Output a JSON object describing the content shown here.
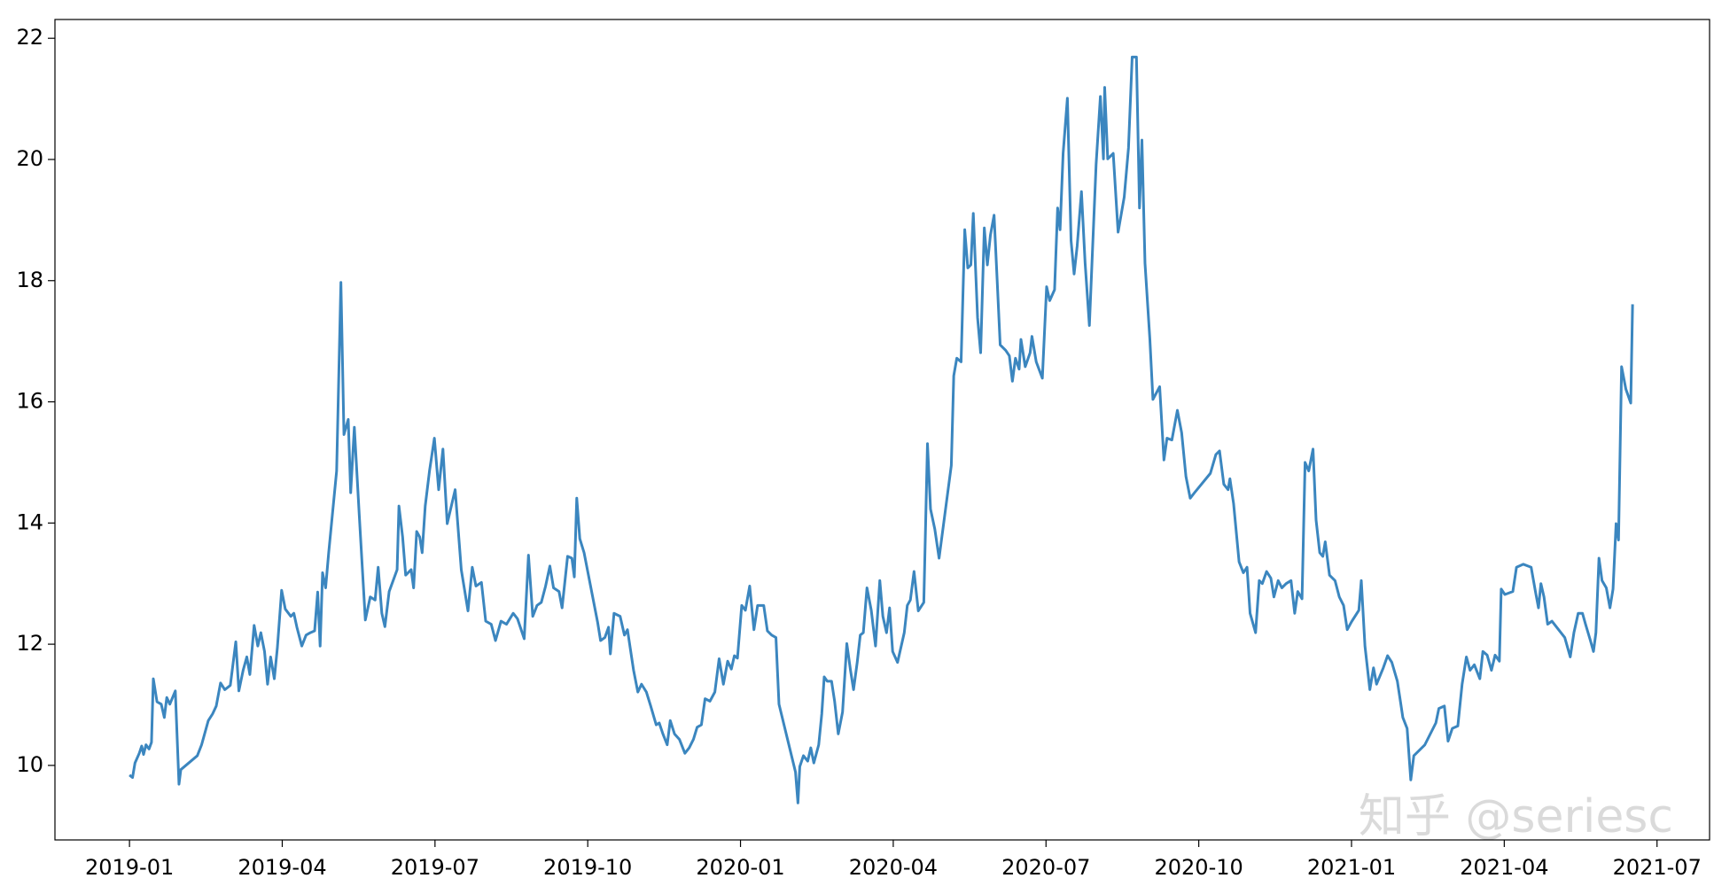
{
  "chart_data": {
    "type": "line",
    "watermark": "知乎 @seriesc",
    "color": "#3b86bf",
    "xlim": [
      2018.878,
      2021.586
    ],
    "xticks": [
      {
        "value": 2019,
        "label": "2019-01"
      },
      {
        "value": 2019.25,
        "label": "2019-04"
      },
      {
        "value": 2019.5,
        "label": "2019-07"
      },
      {
        "value": 2019.75,
        "label": "2019-10"
      },
      {
        "value": 2020,
        "label": "2020-01"
      },
      {
        "value": 2020.25,
        "label": "2020-04"
      },
      {
        "value": 2020.5,
        "label": "2020-07"
      },
      {
        "value": 2020.75,
        "label": "2020-10"
      },
      {
        "value": 2021,
        "label": "2021-01"
      },
      {
        "value": 2021.25,
        "label": "2021-04"
      },
      {
        "value": 2021.5,
        "label": "2021-07"
      }
    ],
    "ylim": [
      8.77,
      22.31
    ],
    "yticks": [
      10,
      12,
      14,
      16,
      18,
      20,
      22
    ],
    "x": [
      2019.0,
      2019.005,
      2019.009,
      2019.016,
      2019.02,
      2019.023,
      2019.027,
      2019.032,
      2019.036,
      2019.039,
      2019.045,
      2019.052,
      2019.057,
      2019.061,
      2019.066,
      2019.075,
      2019.081,
      2019.084,
      2019.111,
      2019.118,
      2019.129,
      2019.136,
      2019.142,
      2019.149,
      2019.156,
      2019.165,
      2019.174,
      2019.179,
      2019.186,
      2019.192,
      2019.197,
      2019.204,
      2019.21,
      2019.215,
      2019.221,
      2019.226,
      2019.231,
      2019.237,
      2019.242,
      2019.249,
      2019.255,
      2019.264,
      2019.269,
      2019.274,
      2019.282,
      2019.289,
      2019.296,
      2019.303,
      2019.308,
      2019.312,
      2019.316,
      2019.321,
      2019.326,
      2019.339,
      2019.346,
      2019.351,
      2019.358,
      2019.362,
      2019.368,
      2019.376,
      2019.386,
      2019.394,
      2019.402,
      2019.407,
      2019.413,
      2019.418,
      2019.425,
      2019.438,
      2019.441,
      2019.447,
      2019.452,
      2019.461,
      2019.465,
      2019.47,
      2019.475,
      2019.479,
      2019.484,
      2019.491,
      2019.499,
      2019.506,
      2019.513,
      2019.52,
      2019.533,
      2019.543,
      2019.554,
      2019.561,
      2019.567,
      2019.576,
      2019.583,
      2019.592,
      2019.599,
      2019.608,
      2019.617,
      2019.628,
      2019.635,
      2019.646,
      2019.653,
      2019.66,
      2019.667,
      2019.674,
      2019.681,
      2019.688,
      2019.694,
      2019.703,
      2019.708,
      2019.717,
      2019.724,
      2019.728,
      2019.732,
      2019.737,
      2019.744,
      2019.766,
      2019.771,
      2019.778,
      2019.784,
      2019.787,
      2019.793,
      2019.803,
      2019.81,
      2019.815,
      2019.825,
      2019.832,
      2019.838,
      2019.846,
      2019.853,
      2019.862,
      2019.867,
      2019.873,
      2019.88,
      2019.885,
      2019.892,
      2019.9,
      2019.909,
      2019.916,
      2019.923,
      2019.929,
      2019.936,
      2019.942,
      2019.95,
      2019.958,
      2019.965,
      2019.972,
      2019.979,
      2019.985,
      2019.99,
      2019.995,
      2020.002,
      2020.008,
      2020.015,
      2020.022,
      2020.028,
      2020.038,
      2020.044,
      2020.051,
      2020.058,
      2020.063,
      2020.09,
      2020.094,
      2020.097,
      2020.103,
      2020.11,
      2020.115,
      2020.12,
      2020.128,
      2020.133,
      2020.137,
      2020.142,
      2020.149,
      2020.154,
      2020.16,
      2020.167,
      2020.174,
      2020.18,
      2020.185,
      2020.191,
      2020.196,
      2020.201,
      2020.207,
      2020.214,
      2020.221,
      2020.228,
      2020.233,
      2020.239,
      2020.244,
      2020.249,
      2020.257,
      2020.268,
      2020.273,
      2020.278,
      2020.284,
      2020.291,
      2020.3,
      2020.306,
      2020.311,
      2020.318,
      2020.325,
      2020.345,
      2020.349,
      2020.354,
      2020.361,
      2020.367,
      2020.372,
      2020.377,
      2020.381,
      2020.388,
      2020.393,
      2020.399,
      2020.404,
      2020.409,
      2020.415,
      2020.42,
      2020.425,
      2020.434,
      2020.44,
      2020.445,
      2020.45,
      2020.456,
      2020.459,
      2020.466,
      2020.474,
      2020.477,
      2020.484,
      2020.494,
      2020.501,
      2020.506,
      2020.514,
      2020.519,
      2020.523,
      2020.528,
      2020.535,
      2020.541,
      2020.546,
      2020.551,
      2020.558,
      2020.564,
      2020.571,
      2020.576,
      2020.582,
      2020.589,
      2020.594,
      2020.596,
      2020.601,
      2020.61,
      2020.618,
      2020.628,
      2020.635,
      2020.641,
      2020.648,
      2020.653,
      2020.657,
      2020.662,
      2020.67,
      2020.675,
      2020.686,
      2020.693,
      2020.698,
      2020.706,
      2020.715,
      2020.722,
      2020.729,
      2020.736,
      2020.743,
      2020.769,
      2020.778,
      2020.784,
      2020.791,
      2020.798,
      2020.801,
      2020.807,
      2020.816,
      2020.823,
      2020.829,
      2020.834,
      2020.843,
      2020.849,
      2020.854,
      2020.861,
      2020.868,
      2020.873,
      2020.88,
      2020.886,
      2020.893,
      2020.901,
      2020.907,
      2020.912,
      2020.919,
      2020.924,
      2020.93,
      2020.937,
      2020.942,
      2020.948,
      2020.953,
      2020.957,
      2020.964,
      2020.973,
      2020.98,
      2020.987,
      2020.993,
      2021.0,
      2021.012,
      2021.016,
      2021.022,
      2021.03,
      2021.036,
      2021.041,
      2021.052,
      2021.059,
      2021.066,
      2021.075,
      2021.08,
      2021.084,
      2021.091,
      2021.097,
      2021.102,
      2021.12,
      2021.138,
      2021.143,
      2021.152,
      2021.158,
      2021.165,
      2021.174,
      2021.181,
      2021.188,
      2021.194,
      2021.201,
      2021.21,
      2021.215,
      2021.222,
      2021.229,
      2021.235,
      2021.242,
      2021.245,
      2021.251,
      2021.264,
      2021.27,
      2021.281,
      2021.294,
      2021.301,
      2021.306,
      2021.31,
      2021.315,
      2021.321,
      2021.328,
      2021.349,
      2021.358,
      2021.364,
      2021.371,
      2021.378,
      2021.383,
      2021.391,
      2021.396,
      2021.4,
      2021.405,
      2021.41,
      2021.417,
      2021.423,
      2021.428,
      2021.433,
      2021.437,
      2021.442,
      2021.449,
      2021.457,
      2021.46
    ],
    "values": [
      9.84,
      9.8,
      10.04,
      10.2,
      10.32,
      10.18,
      10.34,
      10.27,
      10.38,
      11.43,
      11.05,
      11.01,
      10.79,
      11.12,
      11.01,
      11.23,
      9.69,
      9.93,
      10.16,
      10.34,
      10.74,
      10.85,
      10.98,
      11.36,
      11.25,
      11.32,
      12.04,
      11.23,
      11.57,
      11.79,
      11.5,
      12.31,
      11.97,
      12.19,
      11.88,
      11.34,
      11.79,
      11.43,
      11.94,
      12.89,
      12.58,
      12.46,
      12.51,
      12.28,
      11.97,
      12.15,
      12.19,
      12.22,
      12.86,
      11.97,
      13.18,
      12.93,
      13.51,
      14.86,
      17.97,
      15.46,
      15.71,
      14.5,
      15.58,
      14.14,
      12.4,
      12.78,
      12.73,
      13.27,
      12.51,
      12.29,
      12.87,
      13.23,
      14.28,
      13.77,
      13.14,
      13.23,
      12.93,
      13.86,
      13.77,
      13.51,
      14.28,
      14.86,
      15.4,
      14.55,
      15.22,
      13.99,
      14.55,
      13.23,
      12.55,
      13.27,
      12.96,
      13.02,
      12.38,
      12.33,
      12.06,
      12.38,
      12.33,
      12.51,
      12.42,
      12.09,
      13.47,
      12.46,
      12.64,
      12.69,
      12.96,
      13.29,
      12.93,
      12.87,
      12.6,
      13.45,
      13.42,
      13.11,
      14.41,
      13.74,
      13.51,
      12.37,
      12.06,
      12.11,
      12.28,
      11.84,
      12.51,
      12.46,
      12.15,
      12.24,
      11.57,
      11.21,
      11.34,
      11.21,
      10.98,
      10.67,
      10.7,
      10.52,
      10.34,
      10.74,
      10.52,
      10.43,
      10.2,
      10.29,
      10.43,
      10.63,
      10.67,
      11.1,
      11.06,
      11.21,
      11.76,
      11.34,
      11.72,
      11.59,
      11.81,
      11.77,
      12.64,
      12.56,
      12.96,
      12.24,
      12.64,
      12.64,
      12.22,
      12.15,
      12.11,
      11.01,
      9.89,
      9.38,
      9.98,
      10.16,
      10.07,
      10.29,
      10.04,
      10.34,
      10.85,
      11.46,
      11.39,
      11.39,
      11.06,
      10.52,
      10.88,
      12.01,
      11.57,
      11.25,
      11.7,
      12.15,
      12.19,
      12.93,
      12.56,
      11.97,
      13.05,
      12.46,
      12.19,
      12.6,
      11.88,
      11.7,
      12.19,
      12.64,
      12.73,
      13.2,
      12.55,
      12.69,
      15.31,
      14.23,
      13.9,
      13.42,
      14.95,
      16.43,
      16.72,
      16.66,
      18.84,
      18.21,
      18.26,
      19.11,
      17.39,
      16.81,
      18.87,
      18.26,
      18.75,
      19.08,
      18.02,
      16.94,
      16.85,
      16.76,
      16.34,
      16.72,
      16.54,
      17.03,
      16.58,
      16.81,
      17.08,
      16.66,
      16.39,
      17.9,
      17.67,
      17.85,
      19.2,
      18.84,
      20.1,
      21.01,
      18.66,
      18.11,
      18.57,
      19.47,
      18.29,
      17.26,
      18.48,
      19.92,
      21.04,
      20.01,
      21.19,
      20.01,
      20.1,
      18.8,
      19.38,
      20.19,
      21.69,
      21.69,
      19.2,
      20.32,
      18.29,
      17.03,
      16.04,
      16.25,
      15.04,
      15.4,
      15.37,
      15.86,
      15.49,
      14.77,
      14.41,
      14.5,
      14.82,
      15.13,
      15.19,
      14.64,
      14.55,
      14.73,
      14.32,
      13.36,
      13.18,
      13.27,
      12.51,
      12.19,
      13.05,
      13.0,
      13.2,
      13.09,
      12.78,
      13.05,
      12.93,
      13.0,
      13.05,
      12.51,
      12.87,
      12.75,
      15.0,
      14.86,
      15.22,
      14.05,
      13.51,
      13.45,
      13.69,
      13.14,
      13.05,
      12.78,
      12.64,
      12.24,
      12.37,
      12.56,
      13.05,
      11.97,
      11.25,
      11.61,
      11.34,
      11.61,
      11.81,
      11.7,
      11.39,
      11.06,
      10.79,
      10.61,
      9.76,
      10.16,
      10.34,
      10.7,
      10.94,
      10.98,
      10.4,
      10.61,
      10.65,
      11.34,
      11.79,
      11.57,
      11.66,
      11.43,
      11.88,
      11.82,
      11.57,
      11.82,
      11.72,
      12.91,
      12.82,
      12.87,
      13.27,
      13.32,
      13.27,
      12.87,
      12.6,
      13.0,
      12.78,
      12.33,
      12.38,
      12.11,
      11.79,
      12.19,
      12.51,
      12.51,
      12.33,
      12.06,
      11.88,
      12.19,
      13.42,
      13.05,
      12.93,
      12.6,
      12.91,
      13.99,
      13.72,
      16.58,
      16.21,
      15.98,
      17.61
    ]
  }
}
